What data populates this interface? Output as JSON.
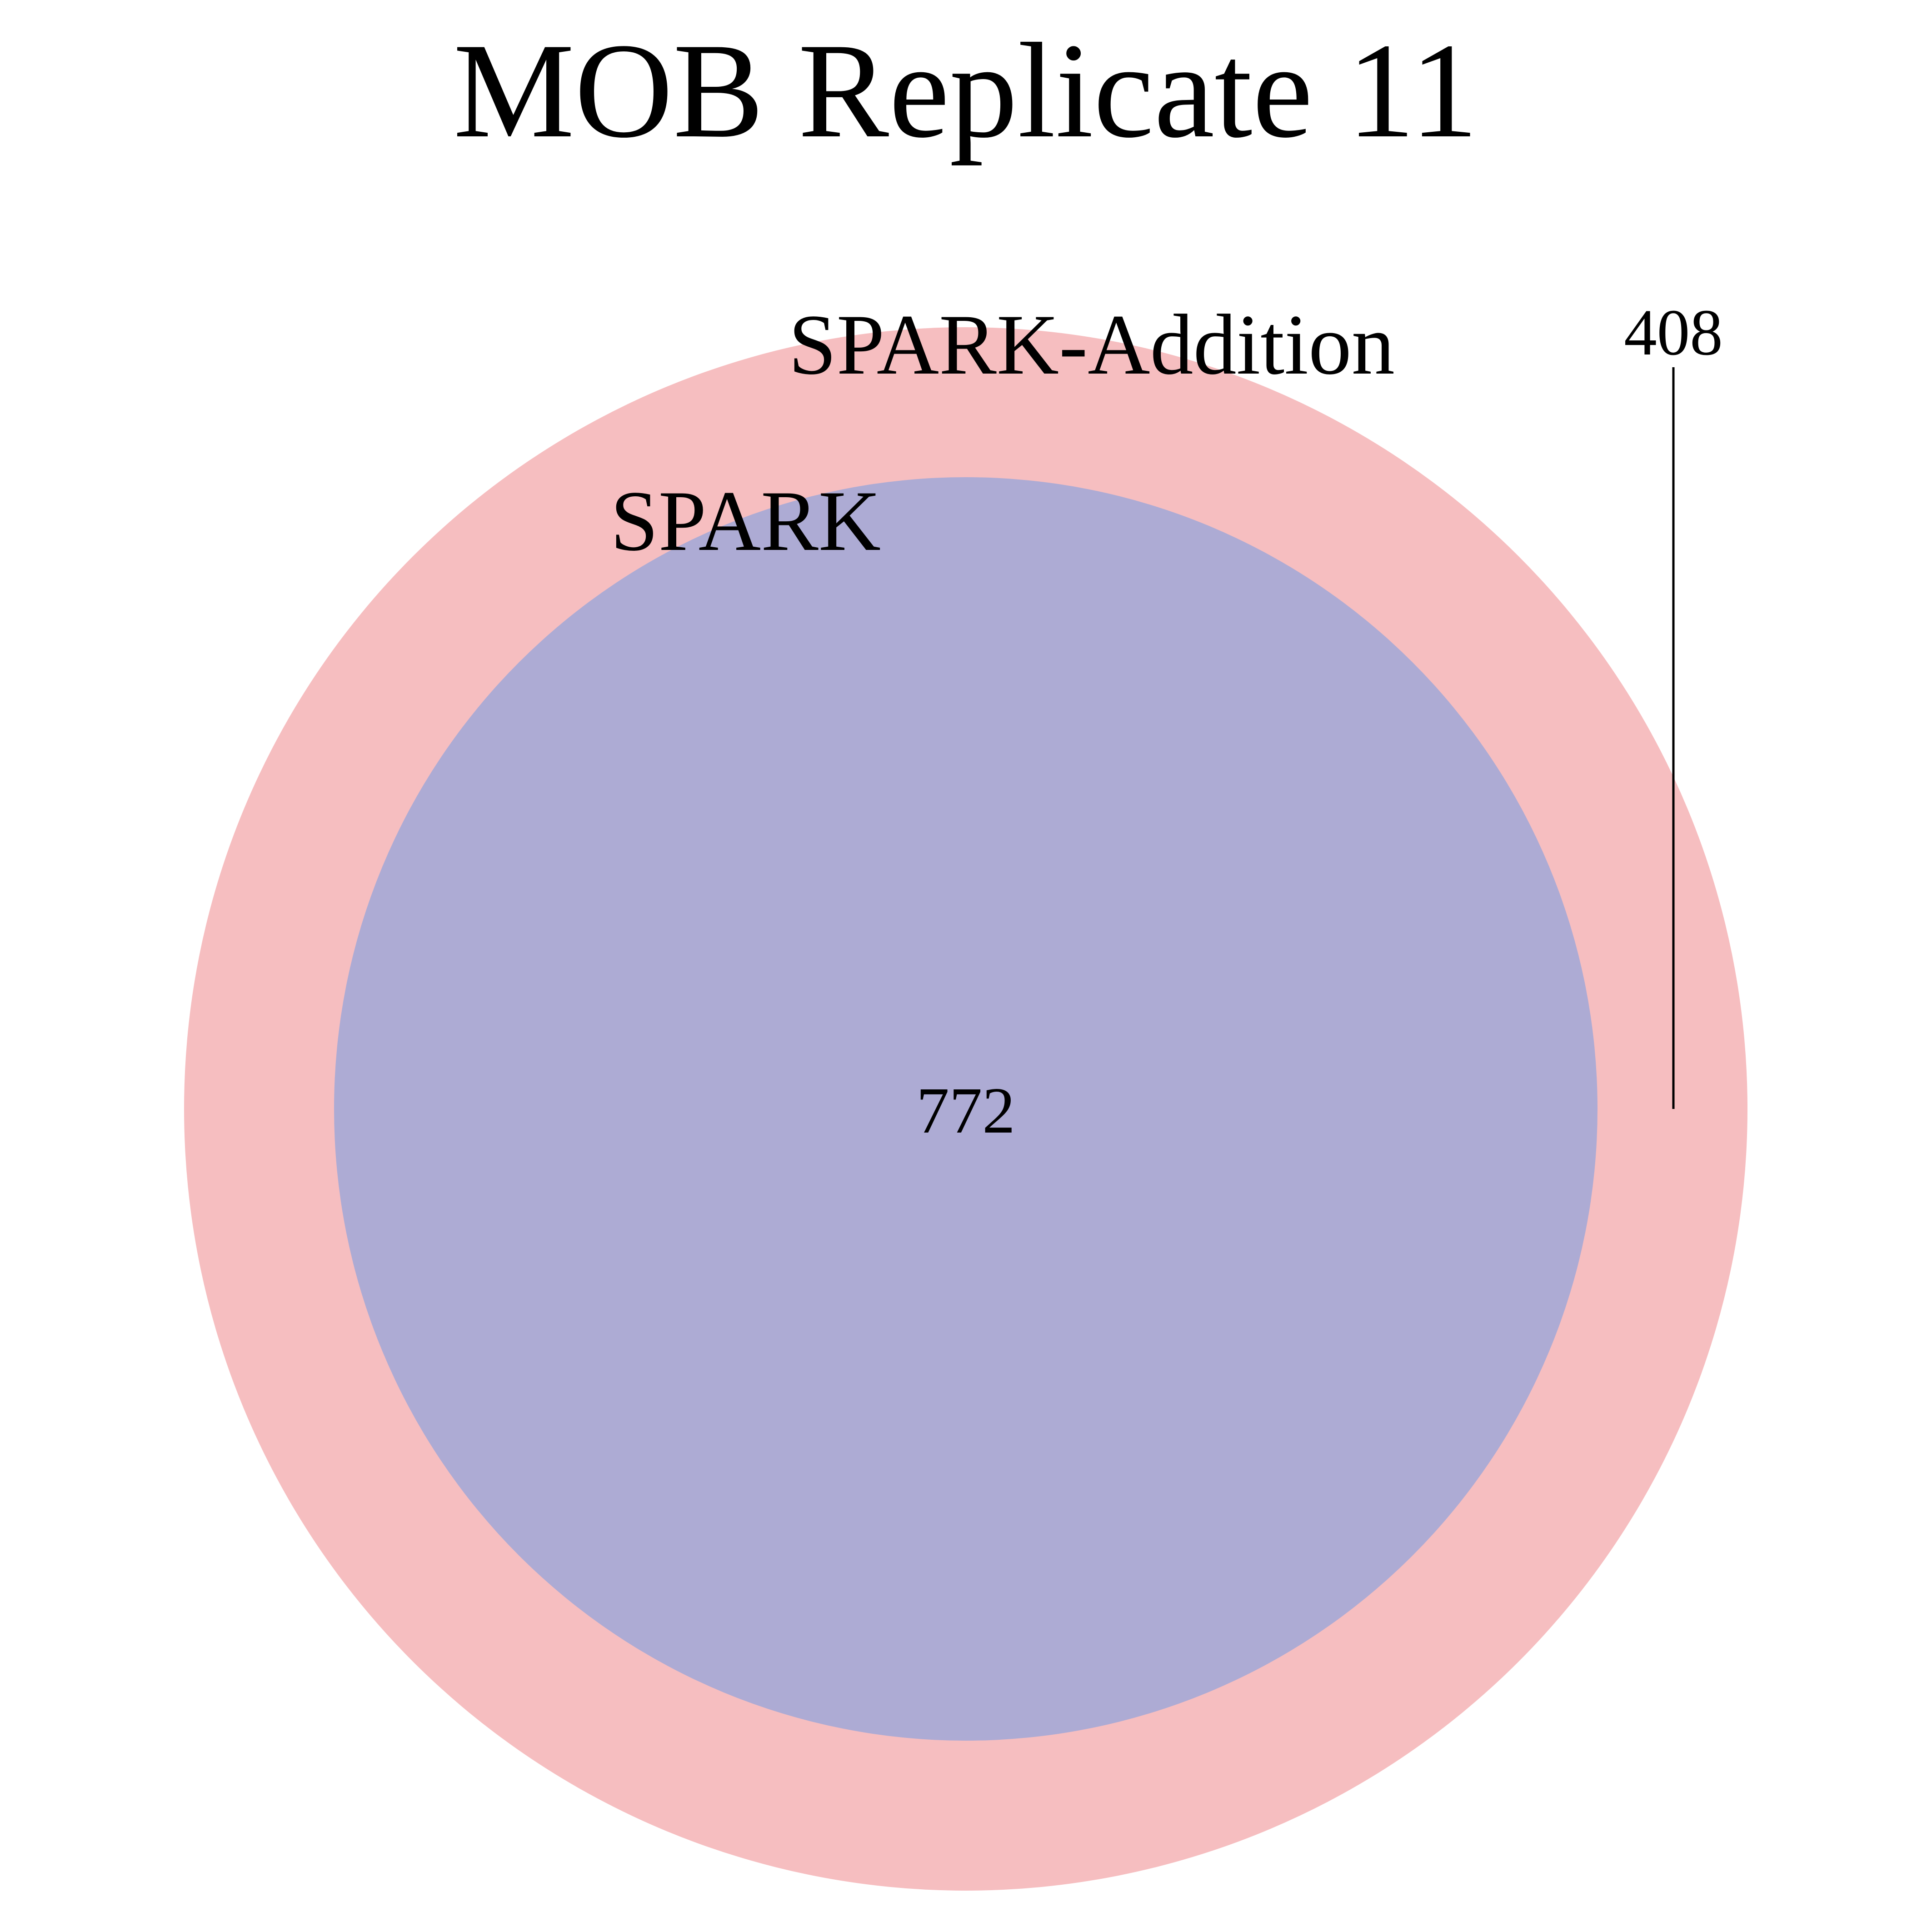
{
  "title": "MOB Replicate 11",
  "sets": {
    "outer": {
      "name": "SPARK-Addition",
      "color": "#F6BEC0"
    },
    "inner": {
      "name": "SPARK",
      "color": "#ADABD4"
    }
  },
  "regions": {
    "outer_only": "408",
    "overlap": "772"
  },
  "line_color": "#000000"
}
